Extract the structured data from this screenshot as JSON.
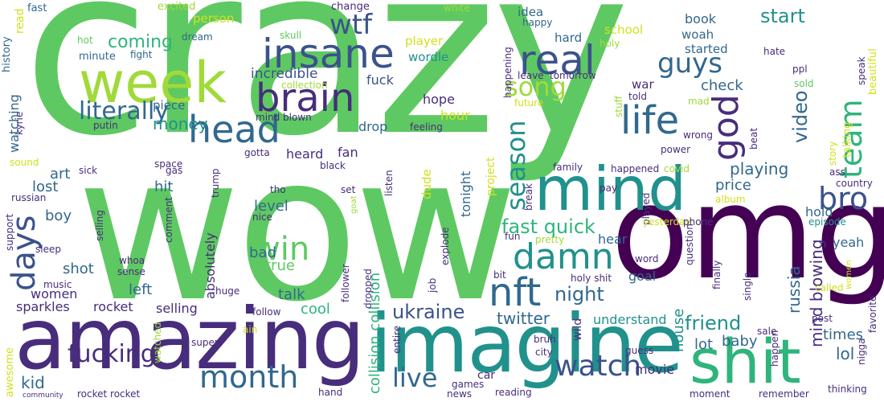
{
  "palette": {
    "green": "#5ec962",
    "lime": "#a0da39",
    "yellow": "#d0e11c",
    "teal": "#21918c",
    "sea": "#2fb47c",
    "blue": "#3b528b",
    "indigo": "#472d7b",
    "purple": "#440154",
    "steel": "#31688e"
  },
  "words": {
    "crazy": "crazy",
    "wow": "wow",
    "omg": "omg",
    "amazing": "amazing",
    "imagine": "imagine",
    "week": "week",
    "mind": "mind",
    "shit": "shit",
    "insane": "insane",
    "head": "head",
    "brain": "brain",
    "real": "real",
    "nft": "nft",
    "damn": "damn",
    "month": "month",
    "life": "life",
    "god": "god",
    "wtf": "wtf",
    "literally": "literally",
    "days": "days",
    "win": "win",
    "watch": "watch",
    "fucking": "fucking",
    "guys": "guys",
    "bro": "bro",
    "team": "team",
    "song": "song",
    "season": "season",
    "live": "live",
    "ukraine": "ukraine",
    "fast_quick": "fast quick",
    "night": "night",
    "friend": "friend",
    "coming": "coming",
    "money": "money",
    "video": "video",
    "start": "start",
    "twitter": "twitter",
    "mind_blowing": "mind blowing",
    "russia": "russia",
    "playing": "playing",
    "collision_collision": "collision collision",
    "rocket": "rocket",
    "selling": "selling",
    "sparkles": "sparkles",
    "kid": "kid",
    "lol": "lol",
    "check": "check",
    "price": "price",
    "hold": "hold",
    "yeah": "yeah",
    "goal": "goal",
    "baby": "baby",
    "lot": "lot",
    "times": "times",
    "house": "house",
    "movie": "movie",
    "understand": "understand",
    "hear": "hear",
    "cool": "cool",
    "talk": "talk",
    "level": "level",
    "bad": "bad",
    "true": "true",
    "hit": "hit",
    "lost": "lost",
    "art": "art",
    "boy": "boy",
    "shot": "shot",
    "left": "left",
    "women": "women",
    "absolutely": "absolutely",
    "incredible": "incredible",
    "fuck": "fuck",
    "drop": "drop",
    "fan": "fan",
    "heard": "heard",
    "hope": "hope",
    "hour": "hour",
    "player": "player",
    "wordle": "wordle",
    "idea": "idea",
    "hard": "hard",
    "school": "school",
    "book": "book",
    "woah": "woah",
    "started": "started",
    "war": "war",
    "tonight": "tonight",
    "dude": "dude",
    "project": "project",
    "watching": "watching",
    "piece": "piece",
    "minute": "minute",
    "person": "person",
    "excited": "excited",
    "fast": "fast",
    "change": "change",
    "read": "read",
    "history": "history",
    "hot": "hot",
    "dream": "dream",
    "fight": "fight",
    "skull": "skull",
    "white": "white",
    "happy": "happy",
    "holy": "holy",
    "hate": "hate",
    "ppl": "ppl",
    "collection": "collection",
    "mind_blown": "mind blown",
    "putin": "putin",
    "kyrie": "kyrie",
    "gotta": "gotta",
    "feeling": "feeling",
    "future": "future",
    "leave": "leave",
    "tomorrow": "tomorrow",
    "happening": "happening",
    "stuff": "stuff",
    "told": "told",
    "mad": "mad",
    "wrong": "wrong",
    "power": "power",
    "beat": "beat",
    "beautiful": "beautiful",
    "talking": "talking",
    "speak": "speak",
    "sold": "sold",
    "story": "story",
    "ass": "ass",
    "country": "country",
    "episode": "episode",
    "sound": "sound",
    "sick": "sick",
    "space": "space",
    "gas": "gas",
    "black": "black",
    "trump": "trump",
    "family": "family",
    "happened": "happened",
    "covid": "covid",
    "russian": "russian",
    "support": "support",
    "selling_small": "selling",
    "comment": "comment",
    "nice": "nice",
    "tho": "tho",
    "set": "set",
    "listen": "listen",
    "goat": "goat",
    "break": "break",
    "pay": "pay",
    "played": "played",
    "album": "album",
    "yesterday": "yesterday",
    "phone": "phone",
    "sleep": "sleep",
    "whoa": "whoa",
    "sense": "sense",
    "music": "music",
    "huge": "huge",
    "follow": "follow",
    "job": "job",
    "explode": "explode",
    "follower": "follower",
    "dropped": "dropped",
    "pretty": "pretty",
    "fun": "fun",
    "bit": "bit",
    "holy_shit": "holy shit",
    "word": "word",
    "question": "question",
    "finally": "finally",
    "single": "single",
    "called": "called",
    "women_small": "women",
    "post": "post",
    "sale": "sale",
    "happen": "happen",
    "favorite": "favorite",
    "nigga": "nigga",
    "awesome": "awesome",
    "watched": "watched",
    "ain": "ain",
    "super": "super",
    "entire": "entire",
    "bruh": "bruh",
    "city": "city",
    "wild": "wild",
    "guess": "guess",
    "car": "car",
    "games": "games",
    "news": "news",
    "reading": "reading",
    "hand": "hand",
    "rocket_rocket": "rocket rocket",
    "community": "community",
    "moment": "moment",
    "remember": "remember",
    "thinking": "thinking",
    "wild2": "wild"
  }
}
